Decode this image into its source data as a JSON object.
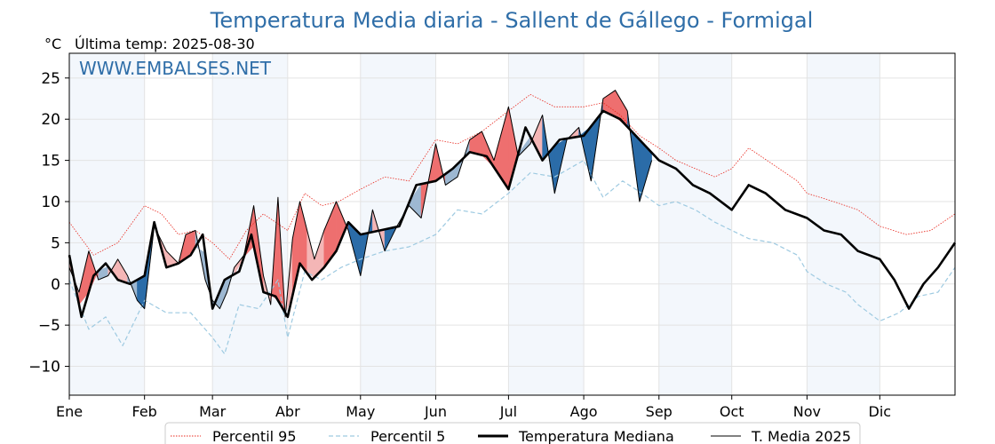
{
  "chart_data": {
    "type": "line",
    "title": "Temperatura Media diaria - Sallent de Gállego - Formigal",
    "ylabel": "°C",
    "subtitle": "Última temp: 2025-08-30",
    "watermark": "WWW.EMBALSES.NET",
    "ylim": [
      -13.5,
      28
    ],
    "yticks": [
      -10,
      -5,
      0,
      5,
      10,
      15,
      20,
      25
    ],
    "ytick_labels": [
      "−10",
      "−5",
      "0",
      "5",
      "10",
      "15",
      "20",
      "25"
    ],
    "xlim_days": [
      0,
      365
    ],
    "month_starts": [
      0,
      31,
      59,
      90,
      120,
      151,
      181,
      212,
      243,
      273,
      304,
      334
    ],
    "month_labels": [
      "Ene",
      "Feb",
      "Mar",
      "Abr",
      "May",
      "Jun",
      "Jul",
      "Ago",
      "Sep",
      "Oct",
      "Nov",
      "Dic"
    ],
    "grid": true,
    "legend_position": "bottom-center",
    "colors": {
      "p95": "#e8281e",
      "p5": "#9ecae1",
      "median": "#000000",
      "current": "#000000",
      "above_fill_light": "#f4b6b6",
      "above_fill_strong": "#ee6f6f",
      "below_fill_light": "#9db8d2",
      "below_fill_strong": "#2b6ca8",
      "band": "#f3f7fc",
      "title": "#2f6ea8"
    },
    "series": [
      {
        "name": "Percentil 95",
        "style": "dotted",
        "x": [
          0,
          10,
          20,
          31,
          38,
          45,
          52,
          59,
          66,
          73,
          80,
          90,
          97,
          104,
          111,
          120,
          130,
          140,
          151,
          160,
          170,
          181,
          190,
          200,
          212,
          220,
          227,
          235,
          243,
          250,
          258,
          266,
          273,
          280,
          290,
          300,
          304,
          315,
          325,
          334,
          345,
          355,
          365
        ],
        "values": [
          7.5,
          3.5,
          5.0,
          9.5,
          8.5,
          6.0,
          6.5,
          5.0,
          3.0,
          6.5,
          8.5,
          6.5,
          11.0,
          9.5,
          10.0,
          11.5,
          13.0,
          12.5,
          17.5,
          17.0,
          18.5,
          21.0,
          23.0,
          21.5,
          21.5,
          22.0,
          20.5,
          18.0,
          16.5,
          15.0,
          14.0,
          13.0,
          14.0,
          16.5,
          14.5,
          12.5,
          11.0,
          10.0,
          9.0,
          7.0,
          6.0,
          6.5,
          8.5
        ]
      },
      {
        "name": "Percentil 5",
        "style": "dashed",
        "x": [
          0,
          8,
          15,
          22,
          31,
          40,
          50,
          59,
          64,
          70,
          78,
          86,
          90,
          97,
          104,
          112,
          120,
          130,
          140,
          151,
          160,
          170,
          181,
          190,
          200,
          212,
          220,
          228,
          236,
          243,
          250,
          258,
          266,
          273,
          280,
          290,
          300,
          304,
          312,
          320,
          325,
          334,
          342,
          350,
          358,
          365
        ],
        "values": [
          0.5,
          -5.5,
          -4.0,
          -7.5,
          -2.0,
          -3.5,
          -3.5,
          -6.5,
          -8.5,
          -2.5,
          -3.0,
          0.5,
          -6.5,
          1.5,
          0.5,
          2.0,
          3.0,
          4.0,
          4.5,
          6.0,
          9.0,
          8.5,
          11.0,
          13.5,
          13.0,
          15.0,
          10.5,
          12.5,
          11.0,
          9.5,
          10.0,
          9.0,
          7.5,
          6.5,
          5.5,
          5.0,
          3.5,
          1.5,
          0.0,
          -1.0,
          -2.5,
          -4.5,
          -3.5,
          -1.5,
          -1.0,
          2.0
        ]
      },
      {
        "name": "Temperatura Mediana",
        "style": "solid-thick",
        "x": [
          0,
          5,
          10,
          15,
          20,
          25,
          31,
          35,
          40,
          45,
          50,
          55,
          59,
          64,
          70,
          75,
          80,
          85,
          90,
          95,
          100,
          105,
          110,
          115,
          120,
          128,
          136,
          143,
          151,
          158,
          165,
          172,
          181,
          188,
          195,
          202,
          212,
          220,
          227,
          235,
          243,
          250,
          257,
          264,
          273,
          280,
          287,
          295,
          304,
          311,
          318,
          325,
          334,
          340,
          346,
          352,
          358,
          365
        ],
        "values": [
          3.5,
          -4.0,
          1.0,
          2.5,
          0.5,
          0.0,
          1.0,
          7.5,
          2.0,
          2.5,
          3.5,
          6.0,
          -3.0,
          0.5,
          1.5,
          6.0,
          -1.0,
          -1.5,
          -4.0,
          2.5,
          0.5,
          2.0,
          4.0,
          7.5,
          6.0,
          6.5,
          7.0,
          12.0,
          12.5,
          14.0,
          16.0,
          15.5,
          11.5,
          19.0,
          15.0,
          17.5,
          18.0,
          21.0,
          20.0,
          17.5,
          15.0,
          14.0,
          12.0,
          11.0,
          9.0,
          12.0,
          11.0,
          9.0,
          8.0,
          6.5,
          6.0,
          4.0,
          3.0,
          0.5,
          -3.0,
          0.0,
          2.0,
          5.0
        ]
      },
      {
        "name": "T. Media 2025",
        "style": "solid-thin",
        "x": [
          0,
          4,
          8,
          12,
          16,
          20,
          24,
          28,
          31,
          35,
          40,
          45,
          48,
          52,
          56,
          59,
          62,
          65,
          68,
          72,
          76,
          80,
          83,
          86,
          89,
          92,
          95,
          98,
          101,
          105,
          110,
          115,
          120,
          125,
          130,
          135,
          140,
          145,
          151,
          155,
          160,
          165,
          170,
          175,
          181,
          185,
          190,
          195,
          200,
          205,
          210,
          215,
          220,
          225,
          230,
          235,
          240
        ],
        "values": [
          2.0,
          -1.0,
          4.0,
          0.5,
          1.0,
          3.0,
          1.0,
          -2.0,
          -3.0,
          7.0,
          4.0,
          2.5,
          6.0,
          6.5,
          0.5,
          -2.0,
          -3.0,
          -1.0,
          2.0,
          3.5,
          9.5,
          1.0,
          -2.5,
          10.5,
          -4.0,
          5.5,
          10.0,
          6.5,
          3.0,
          6.5,
          10.0,
          6.5,
          1.0,
          9.0,
          4.0,
          7.0,
          9.5,
          8.0,
          17.0,
          12.0,
          13.0,
          17.5,
          18.5,
          15.0,
          21.5,
          15.5,
          17.0,
          20.5,
          11.0,
          17.5,
          19.0,
          12.5,
          22.5,
          23.5,
          21.0,
          10.0,
          15.0
        ]
      }
    ]
  },
  "legend": {
    "p95_label": "Percentil 95",
    "p5_label": "Percentil 5",
    "median_label": "Temperatura Mediana",
    "current_label": "T. Media 2025"
  }
}
